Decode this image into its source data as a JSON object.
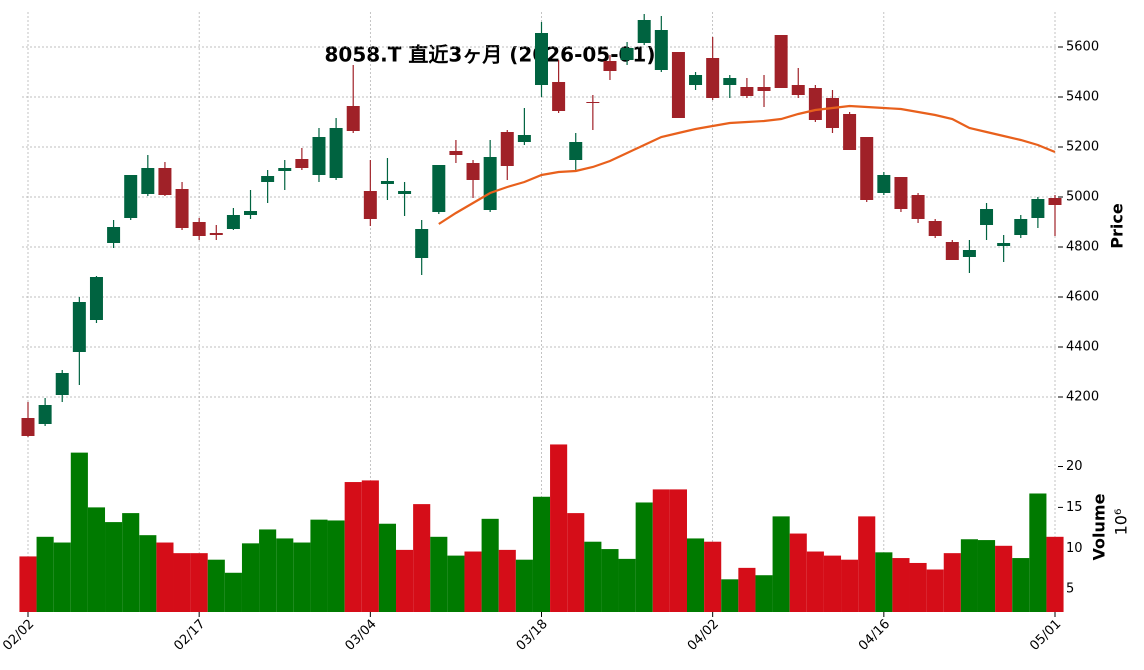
{
  "chart_data": [
    {
      "type": "candlestick",
      "title": "8058.T  直近3ヶ月 (2026-05-01)",
      "ylabel": "Price",
      "categories": [
        "02/02",
        null,
        null,
        null,
        null,
        null,
        null,
        null,
        null,
        null,
        "02/17",
        null,
        null,
        null,
        null,
        null,
        null,
        null,
        null,
        null,
        "03/04",
        null,
        null,
        null,
        null,
        null,
        null,
        null,
        null,
        null,
        "03/18",
        null,
        null,
        null,
        null,
        null,
        null,
        null,
        null,
        null,
        "04/02",
        null,
        null,
        null,
        null,
        null,
        null,
        null,
        null,
        null,
        "04/16",
        null,
        null,
        null,
        null,
        null,
        null,
        null,
        null,
        null,
        "05/01"
      ],
      "open": [
        4116,
        4092,
        4208,
        4380,
        4508,
        4816,
        4916,
        5012,
        5116,
        5032,
        4900,
        4856,
        4872,
        4928,
        5060,
        5104,
        5152,
        5088,
        5076,
        5364,
        5024,
        5052,
        5012,
        4756,
        4940,
        5184,
        5136,
        4948,
        5260,
        5220,
        5448,
        5460,
        5148,
        5380,
        5544,
        5548,
        5616,
        5508,
        5580,
        5448,
        5556,
        5448,
        5440,
        5440,
        5648,
        5448,
        5436,
        5396,
        5332,
        5240,
        5016,
        5080,
        5008,
        4904,
        4820,
        4760,
        4888,
        4804,
        4848,
        4916,
        4996
      ],
      "high": [
        4180,
        4196,
        4308,
        4600,
        4684,
        4908,
        5088,
        5168,
        5140,
        5060,
        4916,
        4888,
        4956,
        5028,
        5108,
        5148,
        5196,
        5276,
        5316,
        5528,
        5148,
        5156,
        5060,
        4908,
        5128,
        5228,
        5148,
        5228,
        5268,
        5356,
        5700,
        5548,
        5256,
        5408,
        5568,
        5620,
        5732,
        5724,
        5580,
        5500,
        5640,
        5488,
        5476,
        5488,
        5648,
        5516,
        5448,
        5428,
        5340,
        5240,
        5100,
        5080,
        5016,
        4912,
        4828,
        4828,
        4976,
        4848,
        4928,
        5000,
        5008
      ],
      "low": [
        4040,
        4084,
        4180,
        4248,
        4496,
        4796,
        4908,
        5004,
        5004,
        4868,
        4828,
        4828,
        4868,
        4912,
        4976,
        5028,
        5108,
        5060,
        5068,
        5256,
        4884,
        4988,
        4924,
        4688,
        4932,
        5136,
        4996,
        4940,
        5068,
        5208,
        5400,
        5336,
        5108,
        5268,
        5468,
        5528,
        5608,
        5500,
        5316,
        5428,
        5388,
        5396,
        5396,
        5360,
        5436,
        5396,
        5300,
        5256,
        5188,
        4980,
        5008,
        4940,
        4896,
        4836,
        4748,
        4696,
        4828,
        4740,
        4836,
        4876,
        4844
      ],
      "close": [
        4044,
        4168,
        4296,
        4580,
        4680,
        4880,
        5088,
        5116,
        5008,
        4876,
        4844,
        4848,
        4928,
        4944,
        5084,
        5116,
        5116,
        5240,
        5276,
        5264,
        4912,
        5064,
        5024,
        4872,
        5128,
        5168,
        5068,
        5160,
        5124,
        5248,
        5656,
        5344,
        5220,
        5376,
        5504,
        5596,
        5708,
        5668,
        5316,
        5488,
        5396,
        5476,
        5404,
        5424,
        5436,
        5408,
        5308,
        5276,
        5188,
        4988,
        5088,
        4952,
        4912,
        4844,
        4748,
        4788,
        4952,
        4816,
        4912,
        4992,
        4968
      ],
      "lines": [
        {
          "color": "#e8601c",
          "values": [
            null,
            null,
            null,
            null,
            null,
            null,
            null,
            null,
            null,
            null,
            null,
            null,
            null,
            null,
            null,
            null,
            null,
            null,
            null,
            null,
            null,
            null,
            null,
            null,
            4892,
            4936,
            4976,
            5016,
            5040,
            5060,
            5088,
            5100,
            5104,
            5120,
            5144,
            5176,
            5208,
            5240,
            5256,
            5272,
            5284,
            5296,
            5300,
            5304,
            5312,
            5332,
            5348,
            5356,
            5364,
            5360,
            5356,
            5352,
            5340,
            5328,
            5312,
            5276,
            5260,
            5244,
            5228,
            5208,
            5180
          ]
        }
      ],
      "ylim": [
        4028,
        5740
      ],
      "yticks": [
        4200,
        4400,
        4600,
        4800,
        5000,
        5200,
        5400,
        5600
      ],
      "grid": true,
      "up_color": "#006340",
      "down_color": "#a02128"
    },
    {
      "type": "volume",
      "ylabel": "Volume",
      "scale_label": "10⁶",
      "values": [
        9.0,
        11.4,
        10.7,
        21.7,
        15.0,
        13.2,
        14.3,
        11.6,
        10.7,
        9.4,
        9.4,
        8.6,
        7.0,
        10.6,
        12.3,
        11.2,
        10.7,
        13.5,
        13.4,
        18.1,
        18.3,
        13.0,
        9.8,
        15.4,
        11.4,
        9.1,
        9.6,
        13.6,
        9.8,
        8.6,
        16.3,
        22.7,
        14.3,
        10.8,
        9.9,
        8.7,
        15.6,
        17.2,
        17.2,
        11.2,
        10.8,
        6.2,
        7.6,
        6.7,
        13.9,
        11.8,
        9.6,
        9.1,
        8.6,
        13.9,
        9.5,
        8.8,
        8.2,
        7.4,
        9.4,
        11.1,
        11.0,
        10.3,
        8.8,
        16.7,
        11.4
      ],
      "ylim": [
        2.2,
        23
      ],
      "yticks": [
        5,
        10,
        15,
        20
      ],
      "up_color": "#007a00",
      "down_color": "#d50d18"
    }
  ]
}
